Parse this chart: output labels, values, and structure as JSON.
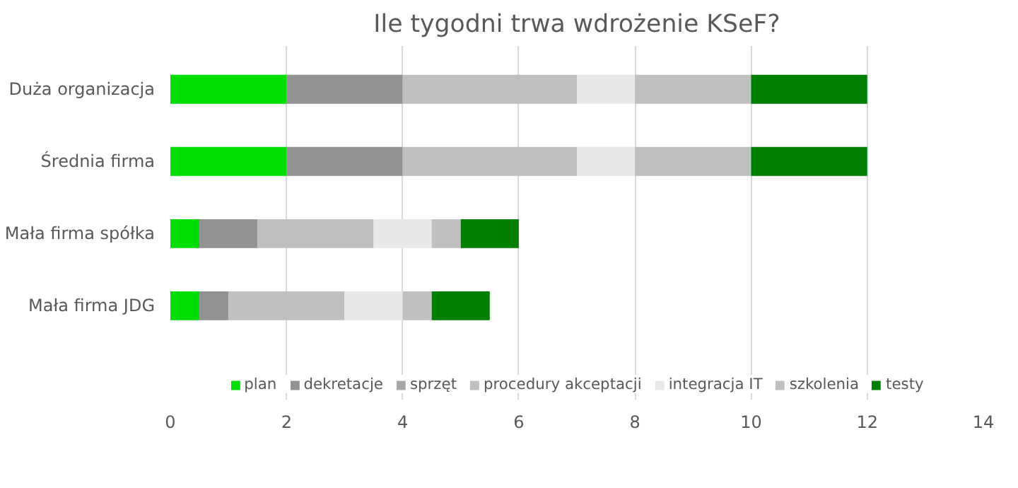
{
  "chart_data": {
    "type": "bar",
    "orientation": "horizontal",
    "stacked": true,
    "title": "Ile tygodni trwa wdrożenie KSeF?",
    "categories": [
      "Duża organizacja",
      "Średnia firma",
      "Mała firma spółka",
      "Mała firma JDG"
    ],
    "series": [
      {
        "name": "plan",
        "color": "#00dd00",
        "values": [
          2,
          2,
          0.5,
          0.5
        ]
      },
      {
        "name": "dekretacje",
        "color": "#929292",
        "values": [
          2,
          2,
          1,
          0.5
        ]
      },
      {
        "name": "sprzęt",
        "color": "#a6a6a6",
        "values": [
          0,
          0,
          0,
          0
        ]
      },
      {
        "name": "procedury akceptacji",
        "color": "#bfbfbf",
        "values": [
          3,
          3,
          2,
          2
        ]
      },
      {
        "name": "integracja IT",
        "color": "#e8e8e8",
        "values": [
          1,
          1,
          1,
          1
        ]
      },
      {
        "name": "szkolenia",
        "color": "#c0c0c0",
        "values": [
          2,
          2,
          0.5,
          0.5
        ]
      },
      {
        "name": "testy",
        "color": "#008000",
        "values": [
          2,
          2,
          1,
          1
        ]
      }
    ],
    "xlim": [
      0,
      14
    ],
    "xticks": [
      0,
      2,
      4,
      6,
      8,
      10,
      12,
      14
    ],
    "grid": "x",
    "legend": "bottom"
  }
}
